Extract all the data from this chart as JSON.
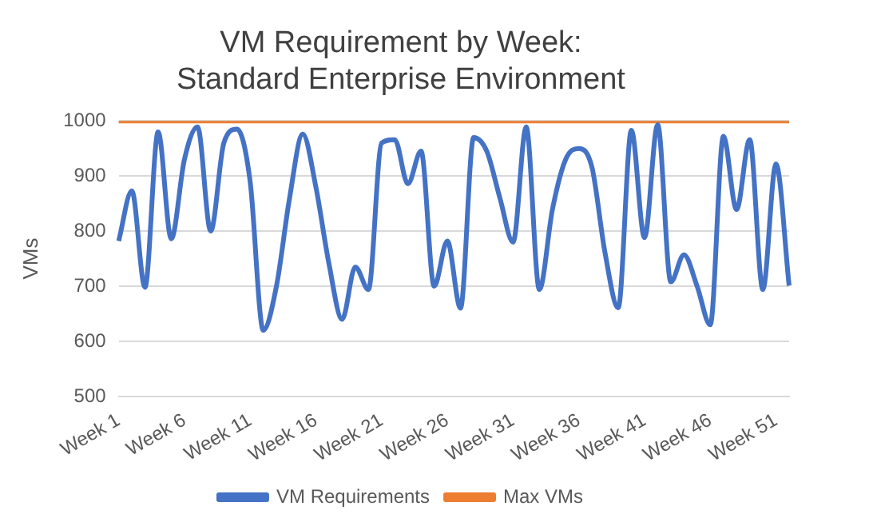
{
  "chart_data": {
    "type": "line",
    "title": "VM Requirement by Week:\nStandard Enterprise Environment",
    "ylabel": "VMs",
    "categories": [
      "Week 1",
      null,
      null,
      null,
      null,
      "Week 6",
      null,
      null,
      null,
      null,
      "Week 11",
      null,
      null,
      null,
      null,
      "Week 16",
      null,
      null,
      null,
      null,
      "Week 21",
      null,
      null,
      null,
      null,
      "Week 26",
      null,
      null,
      null,
      null,
      "Week 31",
      null,
      null,
      null,
      null,
      "Week 36",
      null,
      null,
      null,
      null,
      "Week 41",
      null,
      null,
      null,
      null,
      "Week 46",
      null,
      null,
      null,
      null,
      "Week 51",
      null
    ],
    "series": [
      {
        "name": "VM Requirements",
        "color": "#4472c4",
        "values": [
          782,
          873,
          698,
          980,
          786,
          930,
          989,
          800,
          960,
          985,
          890,
          620,
          700,
          860,
          976,
          880,
          740,
          640,
          735,
          694,
          960,
          966,
          886,
          945,
          700,
          782,
          660,
          970,
          945,
          860,
          780,
          989,
          694,
          840,
          930,
          950,
          916,
          760,
          661,
          983,
          788,
          993,
          708,
          757,
          700,
          630,
          972,
          839,
          966,
          694,
          922,
          701
        ]
      },
      {
        "name": "Max VMs",
        "color": "#ed7d31",
        "values": [
          1000,
          1000,
          1000,
          1000,
          1000,
          1000,
          1000,
          1000,
          1000,
          1000,
          1000,
          1000,
          1000,
          1000,
          1000,
          1000,
          1000,
          1000,
          1000,
          1000,
          1000,
          1000,
          1000,
          1000,
          1000,
          1000,
          1000,
          1000,
          1000,
          1000,
          1000,
          1000,
          1000,
          1000,
          1000,
          1000,
          1000,
          1000,
          1000,
          1000,
          1000,
          1000,
          1000,
          1000,
          1000,
          1000,
          1000,
          1000,
          1000,
          1000,
          1000,
          1000
        ]
      }
    ],
    "ylim": [
      500,
      1000
    ],
    "yticks": [
      500,
      600,
      700,
      800,
      900,
      1000
    ],
    "grid": "y",
    "legend": "bottom",
    "marker": "none",
    "line_style": "solid"
  }
}
